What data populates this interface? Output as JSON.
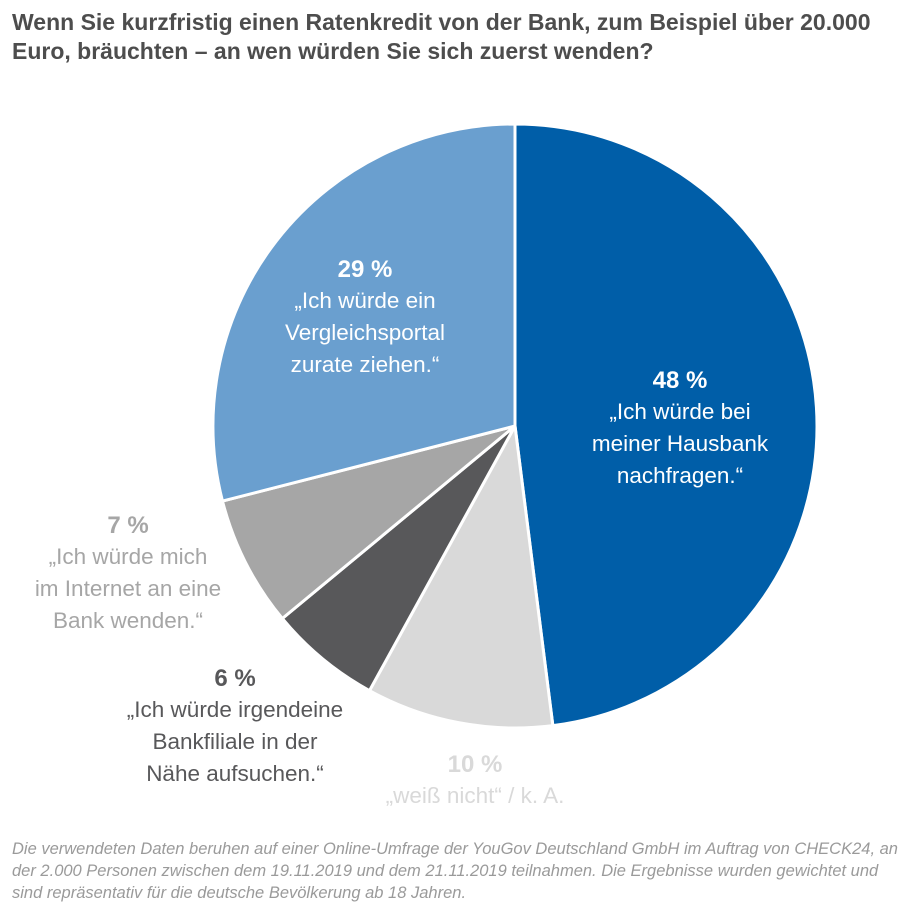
{
  "chart_data": {
    "type": "pie",
    "title": "Wenn Sie kurzfristig einen Ratenkredit von der Bank, zum Beispiel über 20.000 Euro, bräuchten – an wen würden Sie sich zuerst wenden?",
    "slices": [
      {
        "value": 48,
        "pct_label": "48 %",
        "lines": [
          "„Ich würde bei",
          "meiner Hausbank",
          "nachfragen.“"
        ],
        "color": "#005ea8",
        "label_color": "#ffffff"
      },
      {
        "value": 10,
        "pct_label": "10 %",
        "lines": [
          "„weiß nicht“ / k. A."
        ],
        "color": "#d9d9d9",
        "label_color": "#d9d9d9"
      },
      {
        "value": 6,
        "pct_label": "6 %",
        "lines": [
          "„Ich würde irgendeine",
          "Bankfiliale in der",
          "Nähe aufsuchen.“"
        ],
        "color": "#58585a",
        "label_color": "#58585a"
      },
      {
        "value": 7,
        "pct_label": "7 %",
        "lines": [
          "„Ich würde mich",
          "im Internet an eine",
          "Bank wenden.“"
        ],
        "color": "#a6a6a6",
        "label_color": "#a6a6a6"
      },
      {
        "value": 29,
        "pct_label": "29 %",
        "lines": [
          "„Ich würde ein",
          "Vergleichsportal",
          "zurate ziehen.“"
        ],
        "color": "#6a9fcf",
        "label_color": "#ffffff"
      }
    ],
    "start": "top",
    "direction": "clockwise"
  },
  "footnote": "Die verwendeten Daten beruhen auf einer Online-Umfrage der YouGov Deutschland GmbH im Auftrag von CHECK24, an der 2.000 Personen zwischen dem 19.11.2019 und dem 21.11.2019 teilnahmen. Die Ergebnisse wurden gewichtet und sind repräsentativ für die deutsche Bevölkerung ab 18 Jahren."
}
